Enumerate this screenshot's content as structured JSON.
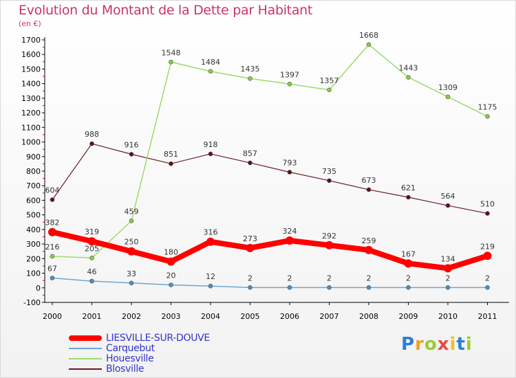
{
  "title": "Evolution du Montant de la Dette par Habitant",
  "subtitle": "(en €)",
  "logo": {
    "letters": [
      "P",
      "r",
      "o",
      "x",
      "i",
      "t",
      "i"
    ],
    "colors": [
      "#2a7fd4",
      "#f0a020",
      "#9acd32",
      "#e84c3d",
      "#f0c020",
      "#2a7fd4",
      "#9acd32"
    ]
  },
  "chart_data": {
    "type": "line",
    "x": [
      "2000",
      "2001",
      "2002",
      "2003",
      "2004",
      "2005",
      "2006",
      "2007",
      "2008",
      "2009",
      "2010",
      "2011"
    ],
    "ylim": [
      -100,
      1700
    ],
    "yticks": [
      "-100",
      "0",
      "100",
      "200",
      "300",
      "400",
      "500",
      "600",
      "700",
      "800",
      "900",
      "1000",
      "1100",
      "1200",
      "1300",
      "1400",
      "1500",
      "1600",
      "1700"
    ],
    "grid": false,
    "legend_position": "bottom-left",
    "series": [
      {
        "name": "Blosville",
        "color": "#6b1a22",
        "marker": "#5a1018",
        "width": 1.2,
        "values": [
          604,
          988,
          916,
          851,
          918,
          857,
          793,
          735,
          673,
          621,
          564,
          510
        ],
        "labels": [
          "604",
          "988",
          "916",
          "851",
          "918",
          "857",
          "793",
          "735",
          "673",
          "621",
          "564",
          "510"
        ]
      },
      {
        "name": "Houesville",
        "color": "#99dd66",
        "marker": "#88cc44",
        "width": 1.5,
        "values": [
          216,
          205,
          459,
          1548,
          1484,
          1435,
          1397,
          1357,
          1668,
          1443,
          1309,
          1175
        ],
        "labels": [
          "216",
          "205",
          "459",
          "1548",
          "1484",
          "1435",
          "1397",
          "1357",
          "1668",
          "1443",
          "1309",
          "1175"
        ]
      },
      {
        "name": "Carquebut",
        "color": "#6fa6d0",
        "marker": "#4a8fc4",
        "width": 1.5,
        "values": [
          67,
          46,
          33,
          20,
          12,
          2,
          2,
          2,
          2,
          2,
          2,
          2
        ],
        "labels": [
          "67",
          "46",
          "33",
          "20",
          "12",
          "2",
          "2",
          "2",
          "2",
          "2",
          "2",
          "2"
        ]
      },
      {
        "name": "LIESVILLE-SUR-DOUVE",
        "color": "#ff0000",
        "marker": "#ff0000",
        "width": 8,
        "values": [
          382,
          319,
          250,
          180,
          316,
          273,
          324,
          292,
          259,
          167,
          134,
          219
        ],
        "labels": [
          "382",
          "319",
          "250",
          "180",
          "316",
          "273",
          "324",
          "292",
          "259",
          "167",
          "134",
          "219"
        ]
      }
    ],
    "legend_order": [
      "LIESVILLE-SUR-DOUVE",
      "Carquebut",
      "Houesville",
      "Blosville"
    ]
  }
}
